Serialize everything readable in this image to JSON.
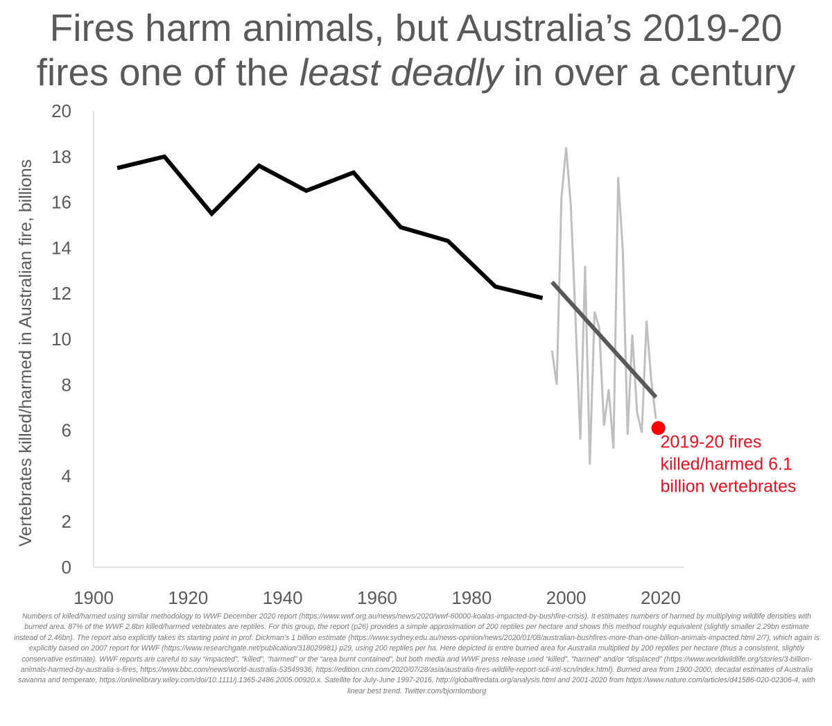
{
  "title": {
    "line1": "Fires harm animals, but Australia’s 2019-20",
    "line2_pre": "fires one of the ",
    "line2_em": "least deadly",
    "line2_post": " in over a century"
  },
  "chart_data": {
    "type": "line",
    "ylabel": "Vertebrates killed/harmed in Australian fire, billions",
    "xlabel": "",
    "xlim": [
      1900,
      2025
    ],
    "ylim": [
      0,
      20
    ],
    "x_ticks": [
      "1900",
      "1920",
      "1940",
      "1960",
      "1980",
      "2000",
      "2020"
    ],
    "y_ticks": [
      "0",
      "2",
      "4",
      "6",
      "8",
      "10",
      "12",
      "14",
      "16",
      "18",
      "20"
    ],
    "grid": false,
    "series": [
      {
        "style": "decadal",
        "color": "#000000",
        "x": [
          1905,
          1915,
          1925,
          1935,
          1945,
          1955,
          1965,
          1975,
          1985,
          1995
        ],
        "y": [
          17.5,
          18.0,
          15.5,
          17.6,
          16.5,
          17.3,
          14.9,
          14.3,
          12.3,
          11.8
        ]
      },
      {
        "style": "annual",
        "color": "#bfbfbf",
        "x": [
          1997,
          1998,
          1999,
          2000,
          2001,
          2002,
          2003,
          2004,
          2005,
          2006,
          2007,
          2008,
          2009,
          2010,
          2011,
          2012,
          2013,
          2014,
          2015,
          2016,
          2017,
          2018,
          2019
        ],
        "y": [
          9.5,
          8.0,
          16.2,
          18.4,
          15.8,
          10.8,
          5.6,
          13.2,
          4.5,
          11.2,
          10.5,
          6.2,
          7.8,
          5.2,
          17.1,
          13.8,
          5.8,
          10.2,
          6.8,
          5.9,
          10.8,
          8.2,
          6.5
        ]
      },
      {
        "style": "linear best trend",
        "color": "#595959",
        "x": [
          1997,
          2019
        ],
        "y": [
          12.5,
          7.45
        ]
      }
    ],
    "highlight_point": {
      "x": 2019.5,
      "y": 6.1,
      "color": "#ff0000"
    },
    "annotation": {
      "lines": [
        "2019-20 fires",
        "killed/harmed 6.1",
        "billion vertebrates"
      ],
      "color": "#e8101e"
    }
  },
  "footnote": "Numbers of killed/harmed using similar methodology to WWF December 2020 report (https://www.wwf.org.au/news/news/2020/wwf-60000-koalas-impacted-by-bushfire-crisis). It estimates numbers of harmed by multiplying wildlife densities with burned area. 87% of the WWF 2.8bn killed/harmed vetebrates are reptiles. For this group, the report (p26) provides a simple approximation of 200 reptiles per hectare and shows this method roughly equivalent (slightly smaller 2.29bn estimate instead of 2.46bn). The report also explicitly takes its starting point in prof. Dickman’s 1 billion estimate (https://www.sydney.edu.au/news-opinion/news/2020/01/08/australian-bushfires-more-than-one-billion-animals-impacted.html 2/7), which again is explicitly based on 2007 report for WWF (https://www.researchgate.net/publication/318029981) p29, using 200 reptiles per ha. Here depicted is entire burned area for Australia multiplied by 200 reptiles per hectare (thus a consistent, slightly conservative estimate). WWF reports are careful to say “impacted”, “killed”, “harmed” or the “area burnt contained”, but both media and WWF press release used “killed”, “harmed” and/or “displaced” (https://www.worldwildlife.org/stories/3-billion-animals-harmed-by-australia-s-fires, https://www.bbc.com/news/world-australia-53549936, https://edition.cnn.com/2020/07/28/asia/australia-fires-wildlife-report-scli-intl-scn/index.html). Burned area from 1900-2000, decadal estimates of Australia savanna and temperate, https://onlinelibrary.wiley.com/doi/10.1111/j.1365-2486.2005.00920.x. Satellite for July-June 1997-2016, http://globalfiredata.org/analysis.html and 2001-2020 from https://www.nature.com/articles/d41586-020-02306-4, with linear best trend. Twitter.com/bjornlomborg"
}
